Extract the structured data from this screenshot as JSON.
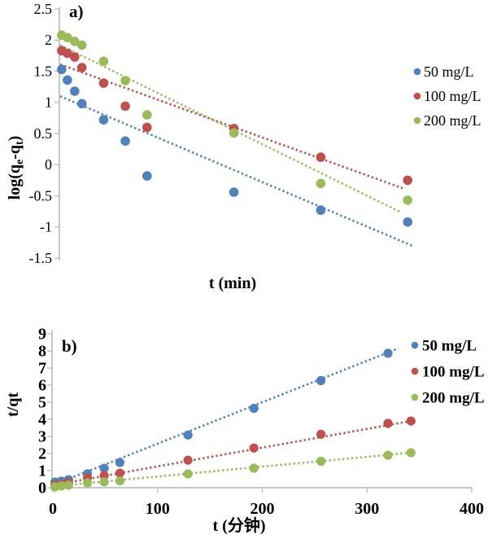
{
  "figure_title": "",
  "palette": {
    "series_50": "#4F81BD",
    "series_100": "#C0504D",
    "series_200": "#9BBB59",
    "axis_gray": "#BFBFBF",
    "text_black": "#000000"
  },
  "chart_data": [
    {
      "id": "panel-a",
      "type": "scatter",
      "panel_label": "a)",
      "title": "",
      "xlabel": "t (min)",
      "ylabel": "log(qe-qt)",
      "ylabel_parts": [
        [
          "log(q",
          false
        ],
        [
          "e",
          true
        ],
        [
          "-q",
          false
        ],
        [
          "t",
          true
        ],
        [
          ")",
          false
        ]
      ],
      "xlim": [
        0,
        250
      ],
      "ylim": [
        -1.5,
        2.5
      ],
      "grid": false,
      "legend_position": "right",
      "y_ticks": [
        2.5,
        2,
        1.5,
        1,
        0.5,
        0,
        -0.5,
        -1,
        -1.5
      ],
      "y_tick_labels": [
        "2.5",
        "2",
        "1.5",
        "1",
        "0.5",
        "0",
        "-0.5",
        "-1",
        "-1.5"
      ],
      "x_ticks": [],
      "x_tick_labels": [],
      "series": [
        {
          "name": "50 mg/L",
          "color": "#4F81BD",
          "x": [
            1,
            5,
            10,
            15,
            30,
            45,
            60,
            120,
            180,
            240
          ],
          "y": [
            1.53,
            1.36,
            1.18,
            0.98,
            0.72,
            0.38,
            -0.18,
            -0.44,
            -0.73,
            -0.92
          ],
          "trend": {
            "x": [
              0,
              244
            ],
            "y": [
              1.1,
              -1.31
            ]
          }
        },
        {
          "name": "100 mg/L",
          "color": "#C0504D",
          "x": [
            1,
            5,
            10,
            15,
            30,
            45,
            60,
            120,
            180,
            240
          ],
          "y": [
            1.83,
            1.79,
            1.73,
            1.56,
            1.31,
            0.94,
            0.6,
            0.58,
            0.12,
            -0.25
          ],
          "trend": {
            "x": [
              0,
              238
            ],
            "y": [
              1.61,
              -0.39
            ]
          }
        },
        {
          "name": "200 mg/L",
          "color": "#9BBB59",
          "x": [
            1,
            5,
            10,
            15,
            30,
            45,
            60,
            120,
            180,
            240
          ],
          "y": [
            2.08,
            2.04,
            1.98,
            1.92,
            1.66,
            1.35,
            0.8,
            0.51,
            -0.3,
            -0.57
          ],
          "trend": {
            "x": [
              0,
              236
            ],
            "y": [
              1.92,
              -0.77
            ]
          }
        }
      ]
    },
    {
      "id": "panel-b",
      "type": "scatter",
      "panel_label": "b)",
      "title": "",
      "xlabel": "t (分钟)",
      "ylabel": "t/qt",
      "ylabel_parts": [
        [
          "t/qt",
          false
        ]
      ],
      "xlim": [
        0,
        400
      ],
      "ylim": [
        0,
        9
      ],
      "grid": false,
      "legend_position": "right",
      "y_ticks": [
        0,
        1,
        2,
        3,
        4,
        5,
        6,
        7,
        8,
        9
      ],
      "y_tick_labels": [
        "0",
        "1",
        "2",
        "3",
        "4",
        "5",
        "6",
        "7",
        "8",
        "9"
      ],
      "x_ticks": [
        0,
        100,
        200,
        300,
        400
      ],
      "x_tick_labels": [
        "0",
        "100",
        "200",
        "300",
        "400"
      ],
      "series": [
        {
          "name": "50 mg/L",
          "color": "#4F81BD",
          "x": [
            2,
            8,
            15,
            33,
            49,
            64,
            129,
            192,
            256,
            320
          ],
          "y": [
            0.33,
            0.38,
            0.47,
            0.81,
            1.14,
            1.47,
            3.08,
            4.64,
            6.26,
            7.86
          ],
          "trend": {
            "x": [
              0,
              330
            ],
            "y": [
              0.15,
              8.15
            ]
          }
        },
        {
          "name": "100 mg/L",
          "color": "#C0504D",
          "x": [
            2,
            8,
            15,
            33,
            49,
            64,
            129,
            192,
            256,
            320,
            342
          ],
          "y": [
            0.15,
            0.2,
            0.3,
            0.57,
            0.71,
            0.85,
            1.61,
            2.32,
            3.13,
            3.76,
            3.9
          ],
          "trend": {
            "x": [
              0,
              342
            ],
            "y": [
              0.15,
              3.9
            ]
          }
        },
        {
          "name": "200 mg/L",
          "color": "#9BBB59",
          "x": [
            2,
            8,
            15,
            33,
            49,
            64,
            129,
            192,
            256,
            320,
            342
          ],
          "y": [
            0.05,
            0.1,
            0.15,
            0.28,
            0.34,
            0.4,
            0.81,
            1.14,
            1.55,
            1.9,
            2.05
          ],
          "trend": {
            "x": [
              0,
              342
            ],
            "y": [
              0.08,
              2.05
            ]
          }
        }
      ]
    }
  ]
}
